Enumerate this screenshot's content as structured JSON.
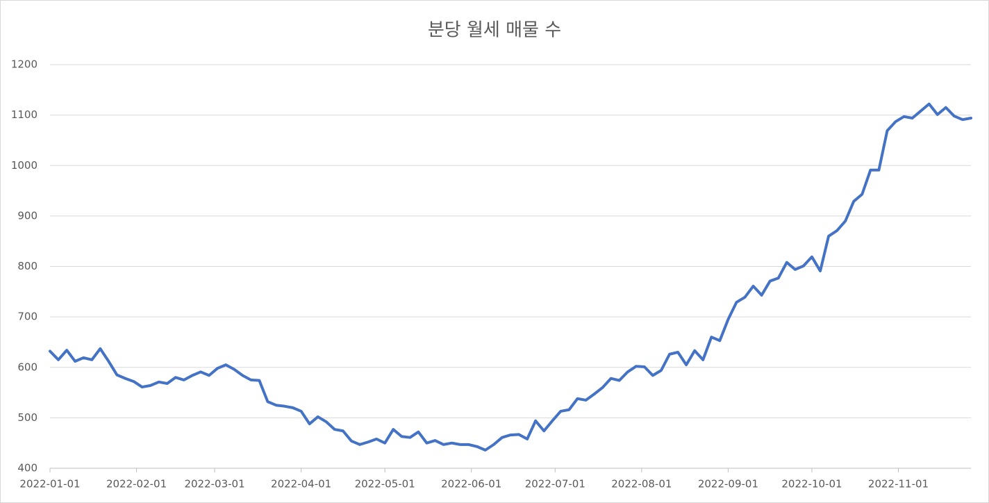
{
  "chart_data": {
    "type": "line",
    "title": "분당 월세 매물 수",
    "x": [
      "2022-01-01",
      "2022-01-04",
      "2022-01-07",
      "2022-01-10",
      "2022-01-13",
      "2022-01-16",
      "2022-01-19",
      "2022-01-22",
      "2022-01-25",
      "2022-01-28",
      "2022-01-31",
      "2022-02-03",
      "2022-02-06",
      "2022-02-09",
      "2022-02-12",
      "2022-02-15",
      "2022-02-18",
      "2022-02-21",
      "2022-02-24",
      "2022-02-27",
      "2022-03-02",
      "2022-03-05",
      "2022-03-08",
      "2022-03-11",
      "2022-03-14",
      "2022-03-17",
      "2022-03-20",
      "2022-03-23",
      "2022-03-26",
      "2022-03-29",
      "2022-04-01",
      "2022-04-04",
      "2022-04-07",
      "2022-04-10",
      "2022-04-13",
      "2022-04-16",
      "2022-04-19",
      "2022-04-22",
      "2022-04-25",
      "2022-04-28",
      "2022-05-01",
      "2022-05-04",
      "2022-05-07",
      "2022-05-10",
      "2022-05-13",
      "2022-05-16",
      "2022-05-19",
      "2022-05-22",
      "2022-05-25",
      "2022-05-28",
      "2022-05-31",
      "2022-06-03",
      "2022-06-06",
      "2022-06-09",
      "2022-06-12",
      "2022-06-15",
      "2022-06-18",
      "2022-06-21",
      "2022-06-24",
      "2022-06-27",
      "2022-06-30",
      "2022-07-03",
      "2022-07-06",
      "2022-07-09",
      "2022-07-12",
      "2022-07-15",
      "2022-07-18",
      "2022-07-21",
      "2022-07-24",
      "2022-07-27",
      "2022-07-30",
      "2022-08-02",
      "2022-08-05",
      "2022-08-08",
      "2022-08-11",
      "2022-08-14",
      "2022-08-17",
      "2022-08-20",
      "2022-08-23",
      "2022-08-26",
      "2022-08-29",
      "2022-09-01",
      "2022-09-04",
      "2022-09-07",
      "2022-09-10",
      "2022-09-13",
      "2022-09-16",
      "2022-09-19",
      "2022-09-22",
      "2022-09-25",
      "2022-09-28",
      "2022-10-01",
      "2022-10-04",
      "2022-10-07",
      "2022-10-10",
      "2022-10-13",
      "2022-10-16",
      "2022-10-19",
      "2022-10-22",
      "2022-10-25",
      "2022-10-28",
      "2022-10-31",
      "2022-11-03",
      "2022-11-06",
      "2022-11-09",
      "2022-11-12",
      "2022-11-15",
      "2022-11-18",
      "2022-11-21",
      "2022-11-24",
      "2022-11-27"
    ],
    "series": [
      {
        "color": "#4472c4",
        "values": [
          632,
          615,
          634,
          612,
          619,
          615,
          637,
          612,
          585,
          578,
          572,
          561,
          564,
          571,
          568,
          580,
          575,
          584,
          591,
          584,
          598,
          605,
          596,
          584,
          575,
          574,
          532,
          525,
          523,
          520,
          513,
          488,
          502,
          492,
          477,
          474,
          454,
          447,
          452,
          458,
          450,
          477,
          463,
          461,
          472,
          450,
          455,
          447,
          450,
          447,
          447,
          443,
          436,
          447,
          461,
          466,
          467,
          458,
          494,
          474,
          494,
          513,
          516,
          538,
          535,
          547,
          560,
          578,
          574,
          591,
          602,
          601,
          584,
          594,
          626,
          630,
          605,
          633,
          615,
          660,
          653,
          695,
          729,
          739,
          761,
          743,
          771,
          777,
          808,
          794,
          801,
          819,
          791,
          860,
          871,
          890,
          929,
          943,
          991,
          991,
          1069,
          1087,
          1097,
          1094,
          1108,
          1122,
          1101,
          1115,
          1098,
          1091,
          1094
        ]
      }
    ],
    "xlim": [
      "2022-01-01",
      "2022-11-27"
    ],
    "xticks": [
      "2022-01-01",
      "2022-02-01",
      "2022-03-01",
      "2022-04-01",
      "2022-05-01",
      "2022-06-01",
      "2022-07-01",
      "2022-08-01",
      "2022-09-01",
      "2022-10-01",
      "2022-11-01"
    ],
    "ylim": [
      400,
      1200
    ],
    "yticks": [
      400,
      500,
      600,
      700,
      800,
      900,
      1000,
      1100,
      1200
    ],
    "grid": true
  }
}
